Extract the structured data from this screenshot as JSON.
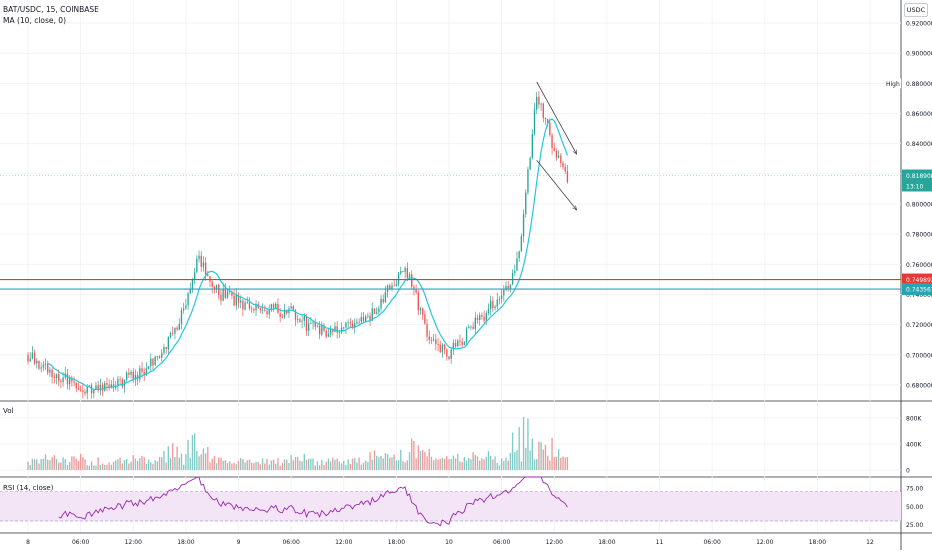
{
  "header": {
    "symbol_line": "BAT/USDC, 15, COINBASE",
    "ma_label": "MA (10, close, 0)",
    "currency": "USDC"
  },
  "volume_pane": {
    "label": "Vol"
  },
  "rsi_pane": {
    "label": "RSI (14, close)"
  },
  "price_axis": {
    "ticks": [
      "0.920000",
      "0.900000",
      "0.880000",
      "0.860000",
      "0.840000",
      "0.820000",
      "0.800000",
      "0.780000",
      "0.760000",
      "0.740000",
      "0.720000",
      "0.700000",
      "0.680000"
    ],
    "high_label": "High",
    "high_value": "0.880000",
    "last_price": "0.818908",
    "countdown": "13:10",
    "resistance_label": "0.749892",
    "support_label": "0.743567"
  },
  "volume_axis": {
    "ticks": [
      "800K",
      "400K",
      "0"
    ]
  },
  "rsi_axis": {
    "ticks": [
      "75.00",
      "50.00",
      "25.00"
    ]
  },
  "time_axis": {
    "labels": [
      "8",
      "06:00",
      "12:00",
      "18:00",
      "9",
      "06:00",
      "12:00",
      "18:00",
      "10",
      "06:00",
      "12:00",
      "18:00",
      "11",
      "06:00",
      "12:00",
      "18:00",
      "12"
    ]
  },
  "colors": {
    "up": "#26a69a",
    "down": "#ef5350",
    "ma": "#26c6da",
    "resistance": "#e53935",
    "support": "#26a6b0",
    "rsi_line": "#9c27b0",
    "rsi_band": "#f3e5f5",
    "trend": "#444444",
    "last_price_bg": "#26a69a"
  },
  "chart_data": {
    "type": "candlestick",
    "symbol": "BAT/USDC",
    "interval": "15",
    "exchange": "COINBASE",
    "x_labels": [
      "8",
      "06:00",
      "12:00",
      "18:00",
      "9",
      "06:00",
      "12:00",
      "18:00",
      "10",
      "06:00",
      "12:00",
      "18:00",
      "11",
      "06:00",
      "12:00",
      "18:00",
      "12"
    ],
    "price_ylim": [
      0.67,
      0.93
    ],
    "key_points": [
      {
        "time": "8 00:00",
        "price": 0.7
      },
      {
        "time": "8 06:00",
        "price": 0.677
      },
      {
        "time": "8 12:00",
        "price": 0.685
      },
      {
        "time": "8 15:00",
        "price": 0.697
      },
      {
        "time": "8 18:00",
        "price": 0.733
      },
      {
        "time": "8 19:30",
        "price": 0.765
      },
      {
        "time": "8 20:30",
        "price": 0.75
      },
      {
        "time": "8 22:00",
        "price": 0.74
      },
      {
        "time": "9 00:00",
        "price": 0.735
      },
      {
        "time": "9 06:00",
        "price": 0.728
      },
      {
        "time": "9 09:00",
        "price": 0.715
      },
      {
        "time": "9 12:00",
        "price": 0.717
      },
      {
        "time": "9 15:00",
        "price": 0.725
      },
      {
        "time": "9 18:00",
        "price": 0.75
      },
      {
        "time": "9 19:00",
        "price": 0.76
      },
      {
        "time": "9 20:00",
        "price": 0.742
      },
      {
        "time": "9 22:00",
        "price": 0.708
      },
      {
        "time": "10 00:00",
        "price": 0.7
      },
      {
        "time": "10 03:00",
        "price": 0.72
      },
      {
        "time": "10 06:00",
        "price": 0.74
      },
      {
        "time": "10 07:00",
        "price": 0.745
      },
      {
        "time": "10 08:00",
        "price": 0.77
      },
      {
        "time": "10 09:00",
        "price": 0.82
      },
      {
        "time": "10 10:00",
        "price": 0.875
      },
      {
        "time": "10 11:00",
        "price": 0.855
      },
      {
        "time": "10 12:00",
        "price": 0.835
      },
      {
        "time": "10 13:30",
        "price": 0.819
      }
    ],
    "moving_average": {
      "name": "MA (10, close, 0)",
      "period": 10
    },
    "high": 0.88,
    "last_price": 0.818908,
    "horizontal_levels": [
      0.749892,
      0.743567
    ],
    "volume_ylim": [
      0,
      1000000
    ],
    "volume_ticks": [
      0,
      400000,
      800000
    ],
    "rsi_ylim": [
      15,
      90
    ],
    "rsi_band": [
      30,
      70
    ],
    "rsi_ticks": [
      25,
      50,
      75
    ],
    "seed": 20
  }
}
